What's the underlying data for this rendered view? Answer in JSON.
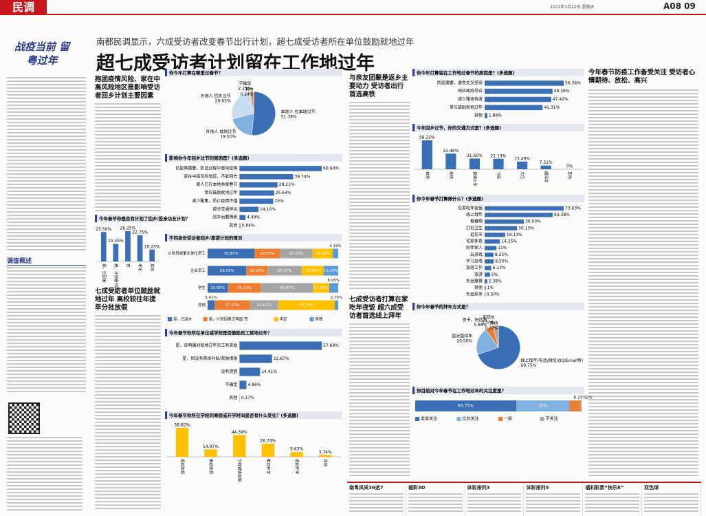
{
  "header": {
    "section": "民调",
    "date": "2021年1月22日 星期五",
    "page": "A08 09"
  },
  "banner": {
    "calligraphy": "战疫当前 留粤过年"
  },
  "headline": {
    "subtitle": "南都民调显示，六成受访者改变春节出行计划，超七成受访者所在单位鼓励就地过年",
    "title": "超七成受访者计划留在工作地过年"
  },
  "overview": {
    "heading": "调查概述"
  },
  "sections": [
    {
      "heading": "抱团疫情风险、家在中高风险地区是影响受访者回乡计划主要因素"
    },
    {
      "heading": "七成受访者单位鼓励就地过年 高校较往年提早分批放假"
    },
    {
      "heading": "与亲友团聚是返乡主要动力 受访者出行首选高铁"
    },
    {
      "heading": "七成受访者打算在家吃年夜饭 超六成受访者首选线上拜年"
    },
    {
      "heading": "今年春节防疫工作备受关注 受访者心情期待、放松、高兴"
    }
  ],
  "chart_data": [
    {
      "type": "pie",
      "title": "你今年打算在哪里过春节？",
      "categories": [
        "本地人 在本地过节",
        "外地人 就地过节",
        "外地人 回乡过节",
        "不确定",
        "其他"
      ],
      "values": [
        51.38,
        19.5,
        26.63,
        2.25,
        0.24
      ],
      "value_labels": [
        "51.38%",
        "19.50%",
        "26.63%",
        "2.25%",
        "0.24%"
      ],
      "colors": [
        "#3a6fb5",
        "#7fb2e0",
        "#c9dcf0",
        "#ed7d31",
        "#a5a5a5"
      ]
    },
    {
      "type": "hbar",
      "title": "影响你今年回乡过节的原因是？(多选题)",
      "categories": [
        "抗疫情需要，防范过程中感染疫情",
        "家在中高风险地区，不能回去",
        "家人已在本地共度春节",
        "单位鼓励就地过年",
        "减少聚集，防止疫情传播",
        "部分交通停运",
        "回乡后要隔离",
        "其他"
      ],
      "values": [
        60.9,
        39.74,
        28.21,
        25.64,
        25,
        14.1,
        4.49,
        0.64
      ],
      "value_labels": [
        "60.90%",
        "39.74%",
        "28.21%",
        "25.64%",
        "25%",
        "14.10%",
        "4.49%",
        "0.64%"
      ],
      "color": "#3a6fb5"
    },
    {
      "type": "vbar",
      "title": "今年春节你是否有计划了回乡/投亲访友计划？",
      "categories": [
        "是，已回家",
        "是，计划春节回家",
        "否",
        "未定",
        "其他"
      ],
      "values": [
        25.5,
        15.25,
        26.25,
        22.75,
        10.25
      ],
      "value_labels": [
        "25.50%",
        "15.25%",
        "26.25%",
        "22.75%",
        "10.25%"
      ],
      "color": "#3a6fb5"
    },
    {
      "type": "stacked_hbar",
      "title": "不同身份受访者回乡/旅游计划的情况",
      "categories": [
        "公务员或事业单位员工",
        "企业员工",
        "学生",
        "其他"
      ],
      "series": [
        {
          "name": "是，已返乡",
          "color": "#3a6fb5",
          "values": [
            35.81,
            29.59,
            15.55,
            5.41
          ],
          "value_labels": [
            "35.81%",
            "29.59%",
            "15.55%",
            "5.41%"
          ]
        },
        {
          "name": "是，计划回家过年",
          "color": "#ed7d31",
          "values": [
            19.53,
            16.26,
            25.13,
            27.03
          ],
          "value_labels": [
            "19.53%",
            "16.26%",
            "25.13%",
            "27.03%"
          ]
        },
        {
          "name": "否",
          "color": "#a5a5a5",
          "values": [
            25.05,
            26.07,
            40.07,
            21.62
          ],
          "value_labels": [
            "25.05%",
            "26.07%",
            "40.07%",
            "21.62%"
          ]
        },
        {
          "name": "未定",
          "color": "#ffc000",
          "values": [
            15.42,
            16.84,
            12.3,
            43.24
          ],
          "value_labels": [
            "15.42%",
            "16.84%",
            "12.30%",
            "43.24%"
          ]
        },
        {
          "name": "其他",
          "color": "#5b9bd5",
          "values": [
            4.19,
            11.24,
            6.95,
            2.7
          ],
          "value_labels": [
            "4.19%",
            "11.24%",
            "6.95%",
            "2.70%"
          ]
        }
      ]
    },
    {
      "type": "hbar",
      "title": "今年春节你所在单位或学校是否鼓励员工就地过年？",
      "categories": [
        "是，且明确对就地过年员工有奖励",
        "是，但没有具体补贴/奖励措施",
        "没有提倡",
        "不确定",
        "其他"
      ],
      "values": [
        57.69,
        22.87,
        14.41,
        4.86,
        0.17
      ],
      "value_labels": [
        "57.69%",
        "22.87%",
        "14.41%",
        "4.86%",
        "0.17%"
      ],
      "color": "#3a6fb5"
    },
    {
      "type": "vbar",
      "title": "今年春节你所在学校的寒假或开学时间是否有什么变化？(多选题)",
      "categories": [
        "提前放假",
        "推迟放假",
        "分批错峰放假",
        "推迟开学",
        "提前开学",
        "其他"
      ],
      "values": [
        58.82,
        14.97,
        44.39,
        26.74,
        9.63,
        3.74
      ],
      "value_labels": [
        "58.82%",
        "14.97%",
        "44.39%",
        "26.74%",
        "9.63%",
        "3.74%"
      ],
      "color": "#ffc000"
    },
    {
      "type": "hbar",
      "title": "你今年打算留在工作地过春节的原因是？(多选题)",
      "categories": [
        "防疫需要，避免交叉感染",
        "响应政府号召",
        "减少路途奔波",
        "单位鼓励就地过年",
        "其他"
      ],
      "values": [
        56.34,
        48.36,
        47.42,
        41.31,
        1.88
      ],
      "value_labels": [
        "56.34%",
        "48.36%",
        "47.42%",
        "41.31%",
        "1.88%"
      ],
      "color": "#3a6fb5"
    },
    {
      "type": "vbar",
      "title": "今年回乡过节，你的交通方式是？(多选题)",
      "categories": [
        "自驾",
        "高铁",
        "普通火车",
        "飞机",
        "大巴",
        "顺风车",
        "其他"
      ],
      "values": [
        58.22,
        31.46,
        21.6,
        21.13,
        15.49,
        7.51,
        0
      ],
      "value_labels": [
        "58.22%",
        "31.46%",
        "21.60%",
        "21.13%",
        "15.49%",
        "7.51%",
        "0%"
      ],
      "color": "#3a6fb5"
    },
    {
      "type": "hbar",
      "title": "你今年春节打算做什么？(多选题)",
      "categories": [
        "在家吃年夜饭",
        "线上拜年",
        "看春晚",
        "打扫卫生",
        "逛花市",
        "宅家休息",
        "陪伴家人",
        "玩游戏",
        "学习充电",
        "加班工作",
        "旅游",
        "外出聚餐",
        "其他",
        "外出探亲"
      ],
      "values": [
        73.63,
        63.38,
        36.5,
        30.13,
        19.13,
        14.25,
        11,
        8.25,
        8.5,
        6.13,
        5,
        2.38,
        1,
        0.5
      ],
      "value_labels": [
        "73.63%",
        "63.38%",
        "36.50%",
        "30.13%",
        "19.13%",
        "14.25%",
        "11%",
        "8.25%",
        "8.50%",
        "6.13%",
        "5%",
        "2.38%",
        "1%",
        "0.50%"
      ],
      "color": "#3a6fb5"
    },
    {
      "type": "pie",
      "title": "你今年春节的拜年方式是？",
      "categories": [
        "线上拜年(电话/微信/QQ/Email等)",
        "面对面拜年",
        "贺卡、短信等",
        "不拜年",
        "其他"
      ],
      "values": [
        69.75,
        20.5,
        5.88,
        3.5,
        0.37
      ],
      "value_labels": [
        "69.75%",
        "20.50%",
        "5.88%",
        "3.50%",
        "0.37%"
      ],
      "colors": [
        "#3a6fb5",
        "#7fb2e0",
        "#ed7d31",
        "#a5a5a5",
        "#ffc000"
      ]
    },
    {
      "type": "stacked_bar",
      "title": "你目前对今年春节在工作地过年的关注度是？",
      "categories": [
        "非常关注",
        "比较关注",
        "一般",
        "不关注"
      ],
      "values": [
        60.75,
        32,
        6.25,
        1
      ],
      "value_labels": [
        "60.75%",
        "32%",
        "6.25%",
        "1%"
      ],
      "colors": [
        "#3a6fb5",
        "#7fb2e0",
        "#ed7d31",
        "#a5a5a5"
      ]
    }
  ],
  "lottery": {
    "items": [
      "南粤风采36选7",
      "福彩3D",
      "体彩排列3",
      "体彩排列5",
      "福利彩票“快乐8”",
      "双色球"
    ]
  }
}
